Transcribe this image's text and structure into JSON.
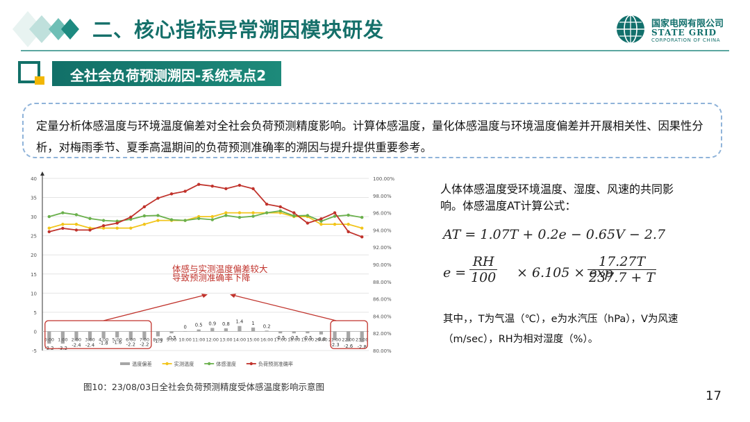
{
  "header": {
    "title": "二、核心指标异常溯因模块研发",
    "logo_cn": "国家电网有限公司",
    "logo_en1": "STATE GRID",
    "logo_en2": "CORPORATION OF CHINA"
  },
  "section": {
    "title": "全社会负荷预测溯因-系统亮点2"
  },
  "description": "定量分析体感温度与环境温度偏差对全社会负荷预测精度影响。计算体感温度，量化体感温度与环境温度偏差并开展相关性、因果性分析，对梅雨季节、夏季高温期间的负荷预测准确率的溯因与提升提供重要参考。",
  "right": {
    "intro": "人体体感温度受环境温度、湿度、风速的共同影响。体感温度AT计算公式：",
    "formula1": "AT = 1.07T + 0.2e − 0.65V − 2.7",
    "formula2_lhs": "e =",
    "formula2_frac1_num": "RH",
    "formula2_frac1_den": "100",
    "formula2_mid": "× 6.105 × exp",
    "formula2_frac2_num": "17.27T",
    "formula2_frac2_den": "237.7 + T",
    "note": "其中，，T为气温（℃），e为水汽压（hPa），V为风速（m/sec），RH为相对湿度（%）。"
  },
  "caption": "图10：23/08/03日全社会负荷预测精度受体感温度影响示意图",
  "page_number": "17",
  "chart_data": {
    "type": "line",
    "categories": [
      "0:00",
      "1:00",
      "2:00",
      "3:00",
      "4:00",
      "5:00",
      "6:00",
      "7:00",
      "8:00",
      "9:00",
      "10:00",
      "11:00",
      "12:00",
      "13:00",
      "14:00",
      "15:00",
      "16:00",
      "17:00",
      "18:00",
      "19:00",
      "20:00",
      "21:00",
      "22:00",
      "23:00"
    ],
    "y_left": {
      "min": -5,
      "max": 40,
      "step": 5
    },
    "y_right": {
      "min": 80,
      "max": 100,
      "step": 2,
      "unit": "%"
    },
    "series": [
      {
        "name": "温度偏差",
        "type": "bar",
        "axis": "left",
        "color": "#a6a6a6",
        "values": [
          -3.2,
          -3.2,
          -2.4,
          -2.4,
          -1.8,
          -1.6,
          -2.2,
          -2.2,
          -1.3,
          -0.5,
          0,
          0.5,
          0.9,
          0.8,
          1.4,
          1,
          0.2,
          -0.5,
          -0.5,
          -0.5,
          -0.8,
          -2.3,
          -2.6,
          -2.8
        ],
        "labels": [
          "-3.2",
          "-3.2",
          "-2.4",
          "-2.4",
          "-1.8",
          "-1.6",
          "-2.2",
          "-2.2",
          "-1.3",
          "-0.5",
          "0",
          "0.5",
          "0.9",
          "0.8",
          "1.4",
          "1",
          "0.2",
          "-0.5",
          "-0.5",
          "-0.5",
          "-0.8",
          "-2.3",
          "-2.6",
          "-2.8"
        ]
      },
      {
        "name": "实测温度",
        "type": "line",
        "axis": "left",
        "color": "#f2c51b",
        "values": [
          27,
          28,
          28,
          27,
          27,
          27,
          27,
          28,
          29,
          29,
          29,
          30,
          30,
          31,
          31,
          31,
          31,
          31,
          30,
          30,
          28,
          28,
          28,
          27
        ]
      },
      {
        "name": "体感温度",
        "type": "line",
        "axis": "left",
        "color": "#6ab04c",
        "values": [
          30,
          31,
          30.5,
          29.5,
          29,
          28.8,
          29.3,
          30.2,
          30.3,
          29.2,
          29,
          29.5,
          29.2,
          30.3,
          29.8,
          30.1,
          31,
          31.5,
          30.2,
          30.3,
          28.8,
          30.1,
          30.4,
          29.8
        ]
      },
      {
        "name": "负荷预测准确率",
        "type": "line",
        "axis": "right",
        "color": "#c0322b",
        "values": [
          93.8,
          94.2,
          94.0,
          94.0,
          94.5,
          94.8,
          95.5,
          96.7,
          97.7,
          98.2,
          98.5,
          99.3,
          99.1,
          98.8,
          99.2,
          98.8,
          97.0,
          96.7,
          96.0,
          94.8,
          95.3,
          96.0,
          93.8,
          93.2
        ]
      }
    ],
    "annotation": {
      "line1": "体感与实测温度偏差较大",
      "line2": "导致预测准确率下降",
      "color": "#c0322b"
    }
  }
}
